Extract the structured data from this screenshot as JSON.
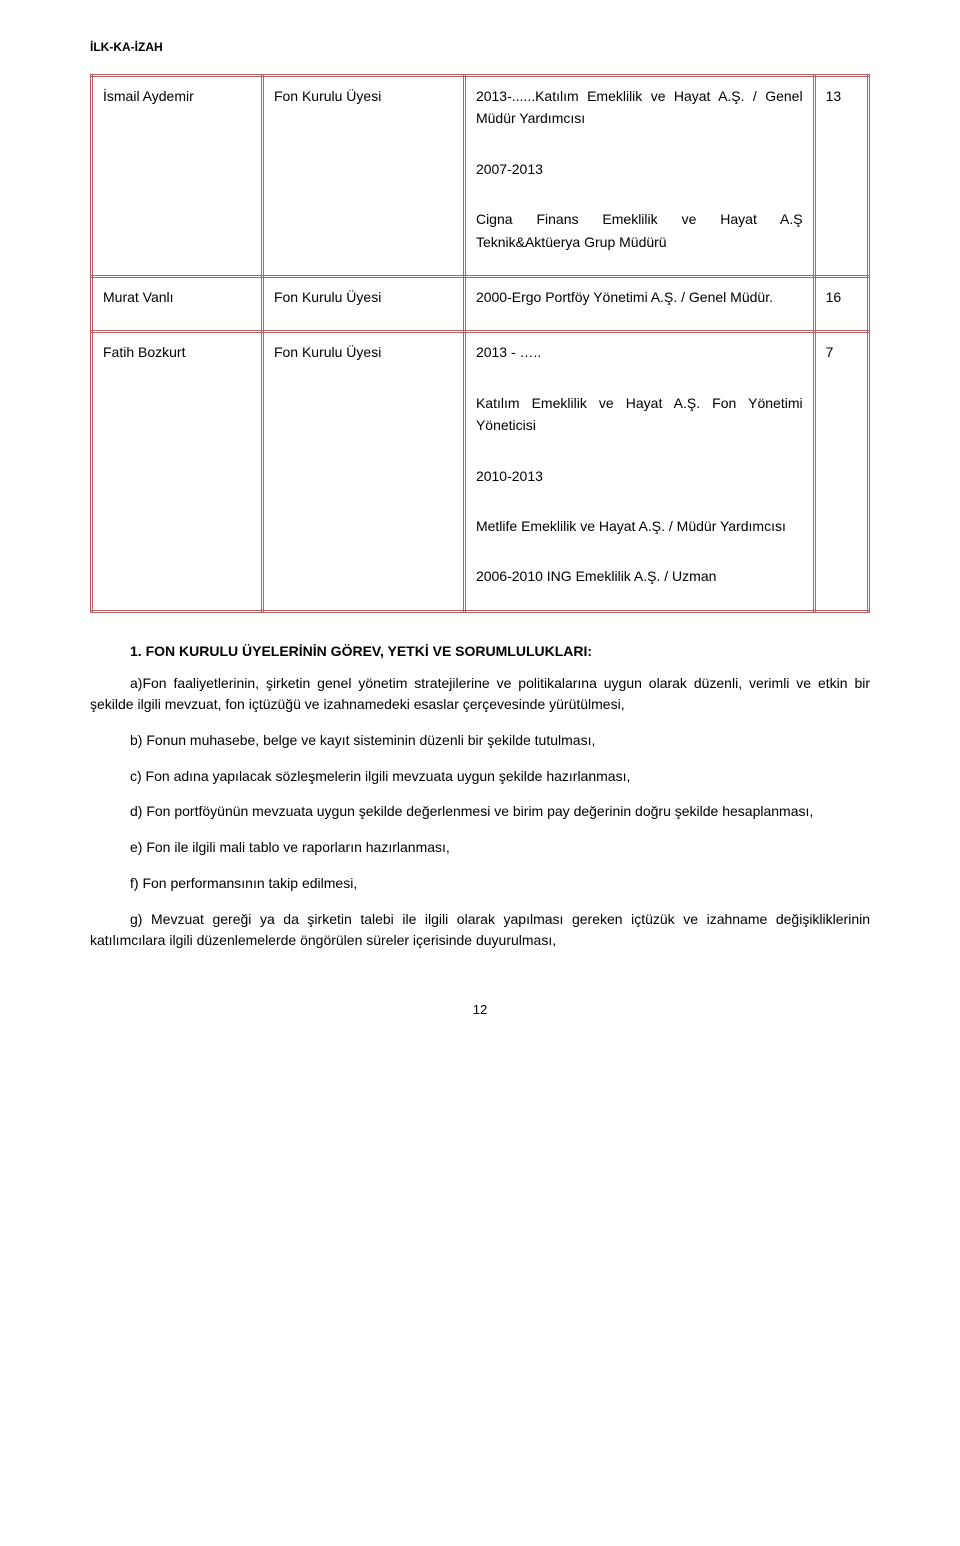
{
  "header": {
    "label": "İLK-KA-İZAH"
  },
  "table": {
    "rows": [
      {
        "name": "İsmail Aydemir",
        "role": "Fon Kurulu Üyesi",
        "history": [
          "2013-......Katılım Emeklilik ve Hayat A.Ş. / Genel Müdür Yardımcısı",
          "2007-2013",
          "Cigna Finans Emeklilik ve Hayat A.Ş Teknik&Aktüerya Grup Müdürü"
        ],
        "years": "13"
      },
      {
        "name": "Murat Vanlı",
        "role": "Fon Kurulu Üyesi",
        "history": [
          "2000-Ergo Portföy Yönetimi A.Ş. / Genel Müdür."
        ],
        "years": "16"
      },
      {
        "name": "Fatih Bozkurt",
        "role": "Fon Kurulu Üyesi",
        "history": [
          "2013 - …..",
          "Katılım Emeklilik ve Hayat A.Ş. Fon Yönetimi Yöneticisi",
          "2010-2013",
          "Metlife Emeklilik ve Hayat A.Ş. / Müdür Yardımcısı",
          "2006-2010 ING Emeklilik A.Ş. / Uzman"
        ],
        "years": "7"
      }
    ]
  },
  "section": {
    "title": "1. FON KURULU ÜYELERİNİN GÖREV, YETKİ VE SORUMLULUKLARI:",
    "items": {
      "a": "a)Fon faaliyetlerinin, şirketin genel yönetim stratejilerine ve politikalarına uygun olarak düzenli, verimli ve etkin bir şekilde ilgili mevzuat, fon içtüzüğü ve izahnamedeki esaslar çerçevesinde yürütülmesi,",
      "b": "b) Fonun muhasebe, belge ve kayıt sisteminin düzenli bir şekilde tutulması,",
      "c": "c) Fon adına yapılacak sözleşmelerin ilgili mevzuata uygun şekilde hazırlanması,",
      "d": "d)   Fon portföyünün mevzuata uygun şekilde değerlenmesi ve birim pay değerinin doğru şekilde hesaplanması,",
      "e": "e)   Fon ile ilgili mali tablo ve raporların hazırlanması,",
      "f": "f)  Fon performansının takip edilmesi,",
      "g": "g)  Mevzuat gereği ya da şirketin talebi ile ilgili olarak yapılması gereken içtüzük ve izahname değişikliklerinin katılımcılara ilgili düzenlemelerde öngörülen süreler içerisinde duyurulması,"
    }
  },
  "page_number": "12"
}
